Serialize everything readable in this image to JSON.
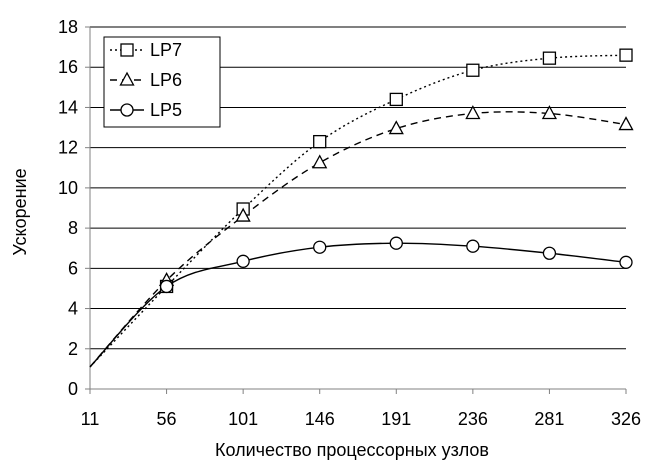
{
  "chart_data": {
    "type": "line",
    "title": "",
    "xlabel": "Количество процессорных узлов",
    "ylabel": "Ускорение",
    "x_ticks": [
      11,
      56,
      101,
      146,
      191,
      236,
      281,
      326
    ],
    "ylim": [
      0,
      18
    ],
    "y_ticks": [
      0,
      2,
      4,
      6,
      8,
      10,
      12,
      14,
      16,
      18
    ],
    "grid": "horizontal",
    "legend_position": "top-left",
    "series": [
      {
        "name": "LP7",
        "line_style": "dotted",
        "marker": "square",
        "x": [
          56,
          101,
          146,
          191,
          236,
          281,
          326
        ],
        "y": [
          5.1,
          8.95,
          12.3,
          14.4,
          15.85,
          16.45,
          16.6
        ]
      },
      {
        "name": "LP6",
        "line_style": "dashed",
        "marker": "triangle",
        "x": [
          56,
          101,
          146,
          191,
          236,
          281,
          326
        ],
        "y": [
          5.4,
          8.6,
          11.25,
          12.95,
          13.7,
          13.7,
          13.15
        ]
      },
      {
        "name": "LP5",
        "line_style": "solid",
        "marker": "circle",
        "x": [
          56,
          101,
          146,
          191,
          236,
          281,
          326
        ],
        "y": [
          5.1,
          6.35,
          7.05,
          7.25,
          7.1,
          6.75,
          6.3
        ]
      }
    ],
    "curve_start": {
      "x": 11,
      "y": 1.1
    }
  }
}
